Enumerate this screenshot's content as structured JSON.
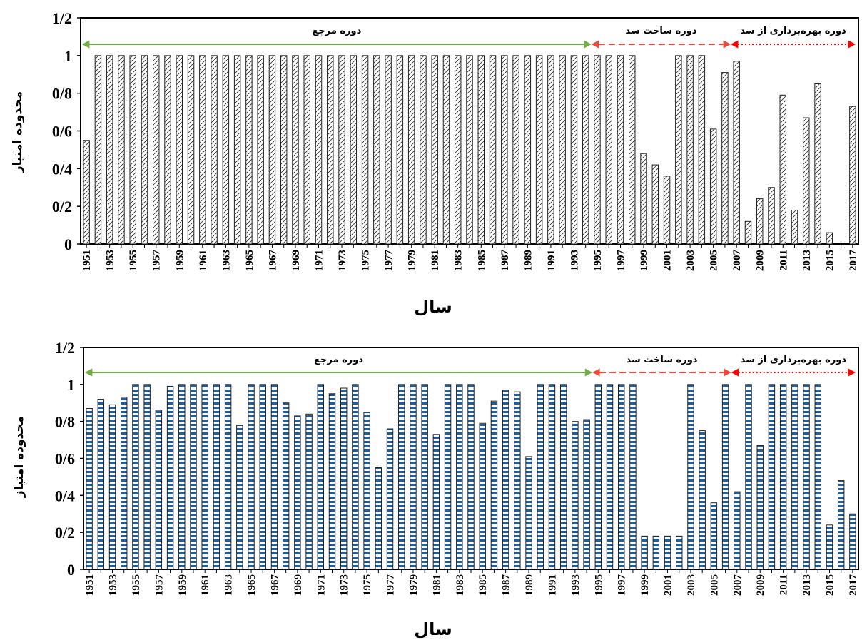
{
  "chart_data": [
    {
      "type": "bar",
      "x": [
        1951,
        1952,
        1953,
        1954,
        1955,
        1956,
        1957,
        1958,
        1959,
        1960,
        1961,
        1962,
        1963,
        1964,
        1965,
        1966,
        1967,
        1968,
        1969,
        1970,
        1971,
        1972,
        1973,
        1974,
        1975,
        1976,
        1977,
        1978,
        1979,
        1980,
        1981,
        1982,
        1983,
        1984,
        1985,
        1986,
        1987,
        1988,
        1989,
        1990,
        1991,
        1992,
        1993,
        1994,
        1995,
        1996,
        1997,
        1998,
        1999,
        2000,
        2001,
        2002,
        2003,
        2004,
        2005,
        2006,
        2007,
        2008,
        2009,
        2010,
        2011,
        2012,
        2013,
        2014,
        2015,
        2016,
        2017
      ],
      "x_tick_labels": [
        "1951",
        "1953",
        "1955",
        "1957",
        "1959",
        "1961",
        "1963",
        "1965",
        "1967",
        "1969",
        "1971",
        "1973",
        "1975",
        "1977",
        "1979",
        "1981",
        "1983",
        "1985",
        "1987",
        "1989",
        "1991",
        "1993",
        "1995",
        "1997",
        "1999",
        "2001",
        "2003",
        "2005",
        "2007",
        "2009",
        "2011",
        "2013",
        "2015",
        "2017"
      ],
      "values": [
        0.55,
        1,
        1,
        1,
        1,
        1,
        1,
        1,
        1,
        1,
        1,
        1,
        1,
        1,
        1,
        1,
        1,
        1,
        1,
        1,
        1,
        1,
        1,
        1,
        1,
        1,
        1,
        1,
        1,
        1,
        1,
        1,
        1,
        1,
        1,
        1,
        1,
        1,
        1,
        1,
        1,
        1,
        1,
        1,
        1,
        1,
        1,
        1,
        0.48,
        0.42,
        0.36,
        1,
        1,
        1,
        0.61,
        0.91,
        0.97,
        0.12,
        0.24,
        0.3,
        0.79,
        0.18,
        0.67,
        0.85,
        0.06,
        0,
        0.73
      ],
      "ylim": [
        0,
        1.2
      ],
      "y_tick_labels": [
        "0",
        "0/2",
        "0/4",
        "0/6",
        "0/8",
        "1",
        "1/2"
      ],
      "xlabel": "سال",
      "ylabel": "محدوده امتیاز",
      "fill": "diagonal-hatch",
      "periods": [
        {
          "label": "دوره مرجع",
          "from": 1951,
          "to": 1994,
          "color": "#70ad47",
          "style": "solid"
        },
        {
          "label": "دوره ساخت سد",
          "from": 1994,
          "to": 2006,
          "color": "#e74c3c",
          "style": "dashed"
        },
        {
          "label": "دوره بهره‌برداری  از  سد",
          "from": 2006,
          "to": 2017,
          "color": "#ff0000",
          "style": "dotted"
        }
      ]
    },
    {
      "type": "bar",
      "x": [
        1951,
        1952,
        1953,
        1954,
        1955,
        1956,
        1957,
        1958,
        1959,
        1960,
        1961,
        1962,
        1963,
        1964,
        1965,
        1966,
        1967,
        1968,
        1969,
        1970,
        1971,
        1972,
        1973,
        1974,
        1975,
        1976,
        1977,
        1978,
        1979,
        1980,
        1981,
        1982,
        1983,
        1984,
        1985,
        1986,
        1987,
        1988,
        1989,
        1990,
        1991,
        1992,
        1993,
        1994,
        1995,
        1996,
        1997,
        1998,
        1999,
        2000,
        2001,
        2002,
        2003,
        2004,
        2005,
        2006,
        2007,
        2008,
        2009,
        2010,
        2011,
        2012,
        2013,
        2014,
        2015,
        2016,
        2017
      ],
      "x_tick_labels": [
        "1951",
        "1953",
        "1955",
        "1957",
        "1959",
        "1961",
        "1963",
        "1965",
        "1967",
        "1969",
        "1971",
        "1973",
        "1975",
        "1977",
        "1979",
        "1981",
        "1983",
        "1985",
        "1987",
        "1989",
        "1991",
        "1993",
        "1995",
        "1997",
        "1999",
        "2001",
        "2003",
        "2005",
        "2007",
        "2009",
        "2011",
        "2013",
        "2015",
        "2017"
      ],
      "values": [
        0.87,
        0.92,
        0.89,
        0.93,
        1,
        1,
        0.86,
        0.99,
        1,
        1,
        1,
        1,
        1,
        0.78,
        1,
        1,
        1,
        0.9,
        0.83,
        0.84,
        1,
        0.95,
        0.98,
        1,
        0.85,
        0.55,
        0.76,
        1,
        1,
        1,
        0.73,
        1,
        1,
        1,
        0.79,
        0.91,
        0.97,
        0.96,
        0.61,
        1,
        1,
        1,
        0.8,
        0.81,
        1,
        1,
        1,
        1,
        0.18,
        0.18,
        0.18,
        0.18,
        1,
        0.75,
        0.36,
        1,
        0.42,
        1,
        0.67,
        1,
        1,
        1,
        1,
        1,
        0.24,
        0.48,
        0.3
      ],
      "ylim": [
        0,
        1.2
      ],
      "y_tick_labels": [
        "0",
        "0/2",
        "0/4",
        "0/6",
        "0/8",
        "1",
        "1/2"
      ],
      "xlabel": "سال",
      "ylabel": "محدوده امتیاز",
      "fill": "blue-stripes",
      "periods": [
        {
          "label": "دوره مرجع",
          "from": 1951,
          "to": 1994,
          "color": "#70ad47",
          "style": "solid"
        },
        {
          "label": "دوره ساخت سد",
          "from": 1994,
          "to": 2006,
          "color": "#e74c3c",
          "style": "dashed"
        },
        {
          "label": "دوره بهره‌برداری از سد",
          "from": 2006,
          "to": 2017,
          "color": "#ff0000",
          "style": "dotted"
        }
      ]
    }
  ]
}
